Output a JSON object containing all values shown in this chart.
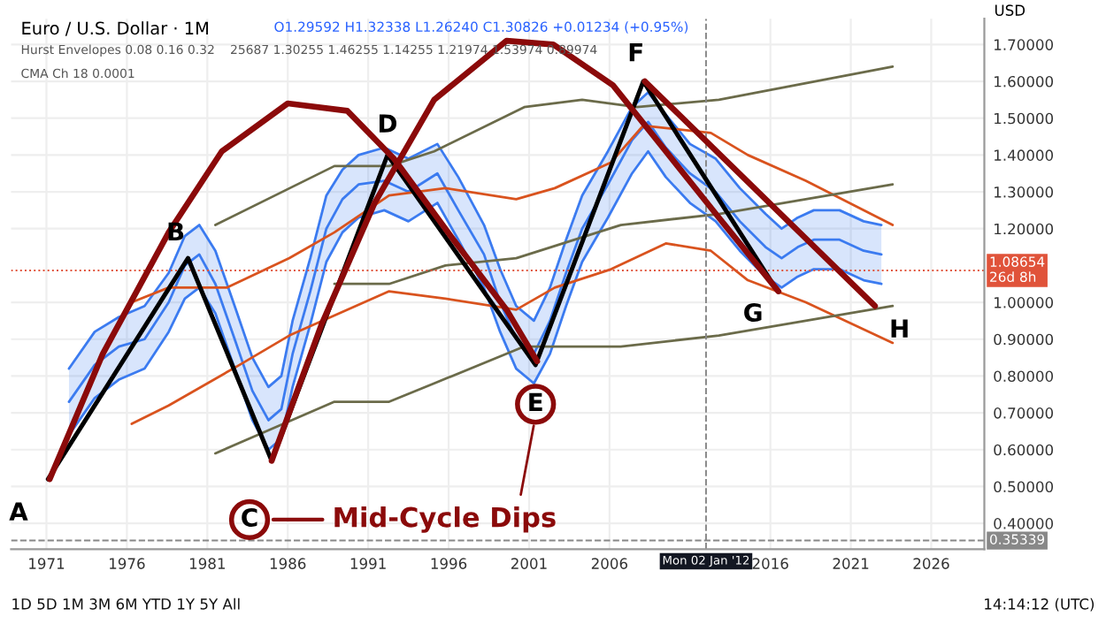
{
  "chart_data": {
    "type": "line",
    "title": "Euro / U.S. Dollar · 1M",
    "subtitle": "O1.29592 H1.32338 L1.26240 C1.30826 +0.01234 (+0.95%)",
    "ylabel": "USD",
    "xlim": [
      1968.8,
      2029.3
    ],
    "ylim": [
      0.33,
      1.77
    ],
    "xticks": [
      1971,
      1976,
      1981,
      1986,
      1991,
      1996,
      2001,
      2006,
      2016,
      2021,
      2026
    ],
    "yticks": [
      {
        "value": 0.4,
        "label": "0.40000"
      },
      {
        "value": 0.5,
        "label": "0.50000"
      },
      {
        "value": 0.6,
        "label": "0.60000"
      },
      {
        "value": 0.7,
        "label": "0.70000"
      },
      {
        "value": 0.8,
        "label": "0.80000"
      },
      {
        "value": 0.9,
        "label": "0.90000"
      },
      {
        "value": 1.0,
        "label": "1.00000"
      },
      {
        "value": 1.2,
        "label": "1.20000"
      },
      {
        "value": 1.3,
        "label": "1.30000"
      },
      {
        "value": 1.4,
        "label": "1.40000"
      },
      {
        "value": 1.5,
        "label": "1.50000"
      },
      {
        "value": 1.6,
        "label": "1.60000"
      },
      {
        "value": 1.7,
        "label": "1.70000"
      }
    ],
    "grid": true,
    "series": [
      {
        "color": "#3b7bf0",
        "x": [
          1972.4,
          1974.0,
          1975.5,
          1977.1,
          1978.6,
          1979.6,
          1980.5,
          1981.5,
          1982.7,
          1983.8,
          1984.8,
          1985.6,
          1986.3,
          1987.4,
          1988.4,
          1989.4,
          1990.4,
          1992.0,
          1993.5,
          1995.3,
          1996.6,
          1998.2,
          1999.2,
          2000.2,
          2001.3,
          2002.3,
          2003.3,
          2004.3,
          2005.9,
          2007.4,
          2008.4,
          2009.5,
          2011.0,
          2012.6,
          2014.1,
          2015.7,
          2016.7,
          2017.7,
          2018.7,
          2020.3,
          2021.8,
          2022.9
        ],
        "values": [
          0.64,
          0.74,
          0.79,
          0.82,
          0.92,
          1.01,
          1.04,
          0.97,
          0.82,
          0.68,
          0.6,
          0.63,
          0.77,
          0.94,
          1.11,
          1.19,
          1.23,
          1.25,
          1.22,
          1.27,
          1.17,
          1.04,
          0.92,
          0.82,
          0.78,
          0.86,
          0.99,
          1.11,
          1.23,
          1.35,
          1.41,
          1.34,
          1.27,
          1.22,
          1.14,
          1.07,
          1.04,
          1.07,
          1.09,
          1.09,
          1.06,
          1.05
        ]
      },
      {
        "color": "#3b7bf0",
        "x": [
          1972.4,
          1974.0,
          1975.5,
          1977.1,
          1978.6,
          1979.6,
          1980.5,
          1981.5,
          1982.7,
          1983.8,
          1984.8,
          1985.6,
          1986.3,
          1987.4,
          1988.4,
          1989.4,
          1990.4,
          1992.0,
          1993.5,
          1995.3,
          1996.6,
          1998.2,
          1999.2,
          2000.2,
          2001.3,
          2002.3,
          2003.3,
          2004.3,
          2005.9,
          2007.4,
          2008.4,
          2009.5,
          2011.0,
          2012.6,
          2014.1,
          2015.7,
          2016.7,
          2017.7,
          2018.7,
          2020.3,
          2021.8,
          2022.9
        ],
        "values": [
          0.82,
          0.92,
          0.96,
          0.99,
          1.08,
          1.18,
          1.21,
          1.14,
          0.99,
          0.85,
          0.77,
          0.8,
          0.95,
          1.12,
          1.29,
          1.36,
          1.4,
          1.42,
          1.39,
          1.43,
          1.34,
          1.21,
          1.09,
          0.99,
          0.95,
          1.04,
          1.17,
          1.29,
          1.41,
          1.53,
          1.57,
          1.51,
          1.43,
          1.39,
          1.31,
          1.24,
          1.2,
          1.23,
          1.25,
          1.25,
          1.22,
          1.21
        ]
      },
      {
        "color": "#3b7bf0",
        "x": [
          1972.4,
          1974.0,
          1975.5,
          1977.1,
          1978.6,
          1979.6,
          1980.5,
          1981.5,
          1982.7,
          1983.8,
          1984.8,
          1985.6,
          1986.3,
          1987.4,
          1988.4,
          1989.4,
          1990.4,
          1992.0,
          1993.5,
          1995.3,
          1996.6,
          1998.2,
          1999.2,
          2000.2,
          2001.3,
          2002.3,
          2003.3,
          2004.3,
          2005.9,
          2007.4,
          2008.4,
          2009.5,
          2011.0,
          2012.6,
          2014.1,
          2015.7,
          2016.7,
          2017.7,
          2018.7,
          2020.3,
          2021.8,
          2022.9
        ],
        "values": [
          0.73,
          0.83,
          0.88,
          0.9,
          1.0,
          1.1,
          1.13,
          1.05,
          0.9,
          0.76,
          0.68,
          0.71,
          0.86,
          1.03,
          1.2,
          1.28,
          1.32,
          1.33,
          1.3,
          1.35,
          1.25,
          1.13,
          1.0,
          0.9,
          0.86,
          0.95,
          1.08,
          1.2,
          1.32,
          1.44,
          1.49,
          1.42,
          1.35,
          1.3,
          1.22,
          1.15,
          1.12,
          1.15,
          1.17,
          1.17,
          1.14,
          1.13
        ],
        "lower": [
          0.64,
          0.74,
          0.79,
          0.82,
          0.92,
          1.01,
          1.04,
          0.97,
          0.82,
          0.68,
          0.6,
          0.63,
          0.77,
          0.94,
          1.11,
          1.19,
          1.23,
          1.25,
          1.22,
          1.27,
          1.17,
          1.04,
          0.92,
          0.82,
          0.78,
          0.86,
          0.99,
          1.11,
          1.23,
          1.35,
          1.41,
          1.34,
          1.27,
          1.22,
          1.14,
          1.07,
          1.04,
          1.07,
          1.09,
          1.09,
          1.06,
          1.05
        ],
        "upper": [
          0.82,
          0.92,
          0.96,
          0.99,
          1.08,
          1.18,
          1.21,
          1.14,
          0.99,
          0.85,
          0.77,
          0.8,
          0.95,
          1.12,
          1.29,
          1.36,
          1.4,
          1.42,
          1.39,
          1.43,
          1.34,
          1.21,
          1.09,
          0.99,
          0.95,
          1.04,
          1.17,
          1.29,
          1.41,
          1.53,
          1.57,
          1.51,
          1.43,
          1.39,
          1.31,
          1.24,
          1.2,
          1.23,
          1.25,
          1.25,
          1.22,
          1.21
        ]
      },
      {
        "color": "#d9531e",
        "x": [
          1976.3,
          1978.6,
          1982.2,
          1986.1,
          1988.9,
          1992.3,
          1995.8,
          2000.2,
          2002.6,
          2006.1,
          2008.1,
          2012.3,
          2014.6,
          2018.2,
          2023.6
        ],
        "values": [
          1.0,
          1.04,
          1.04,
          1.12,
          1.19,
          1.29,
          1.31,
          1.28,
          1.31,
          1.38,
          1.48,
          1.46,
          1.4,
          1.33,
          1.21
        ]
      },
      {
        "color": "#d9531e",
        "x": [
          1976.3,
          1978.6,
          1983.0,
          1986.1,
          1992.3,
          1995.8,
          2000.2,
          2002.6,
          2006.1,
          2009.5,
          2012.3,
          2014.6,
          2018.2,
          2023.6
        ],
        "values": [
          0.67,
          0.72,
          0.83,
          0.91,
          1.03,
          1.01,
          0.98,
          1.04,
          1.09,
          1.16,
          1.14,
          1.06,
          1.0,
          0.89
        ]
      },
      {
        "color": "#6b6b4a",
        "x": [
          1981.5,
          1988.9,
          1992.3,
          1995.1,
          2000.7,
          2004.3,
          2007.7,
          2012.8,
          2023.6
        ],
        "values": [
          1.21,
          1.37,
          1.37,
          1.41,
          1.53,
          1.55,
          1.53,
          1.55,
          1.64
        ]
      },
      {
        "color": "#6b6b4a",
        "x": [
          1988.9,
          1992.3,
          1995.8,
          2000.2,
          2006.7,
          2012.8,
          2023.6
        ],
        "values": [
          1.05,
          1.05,
          1.1,
          1.12,
          1.21,
          1.24,
          1.32
        ]
      },
      {
        "color": "#6b6b4a",
        "x": [
          1981.5,
          1988.9,
          1992.3,
          1995.1,
          2000.7,
          2006.7,
          2012.8,
          2023.6
        ],
        "values": [
          0.59,
          0.73,
          0.73,
          0.78,
          0.88,
          0.88,
          0.91,
          0.99
        ]
      },
      {
        "color": "#000000",
        "x": [
          1971.1,
          1979.8,
          1985.0,
          1992.2,
          2001.4,
          2008.1,
          2016.3
        ],
        "values": [
          0.52,
          1.12,
          0.57,
          1.4,
          0.83,
          1.6,
          1.04
        ]
      },
      {
        "color": "#8b0a0a",
        "x": [
          1971.2,
          1974.5,
          1978.6,
          1981.9,
          1986.0,
          1989.7,
          1992.6,
          1996.3,
          1999.6,
          2001.5
        ],
        "values": [
          0.52,
          0.86,
          1.19,
          1.41,
          1.54,
          1.52,
          1.39,
          1.17,
          0.98,
          0.84
        ]
      },
      {
        "color": "#8b0a0a",
        "x": [
          1985.0,
          1988.1,
          1991.4,
          1995.1,
          1999.6,
          2002.5,
          2006.2,
          2009.5,
          2012.8,
          2016.5
        ],
        "values": [
          0.57,
          0.94,
          1.27,
          1.55,
          1.71,
          1.7,
          1.59,
          1.41,
          1.23,
          1.03
        ]
      },
      {
        "color": "#8b0a0a",
        "x": [
          2008.2,
          2022.5
        ],
        "values": [
          1.6,
          0.99
        ]
      }
    ],
    "ref_lines": [
      {
        "axis": "y",
        "value": 1.08654,
        "label": "1.08654\n26d 8h",
        "color": "#e0533a",
        "line_style": "dotted"
      },
      {
        "axis": "y",
        "value": 0.35339,
        "label": "0.35339",
        "color": "#888888",
        "line_style": "dashed"
      },
      {
        "axis": "x",
        "value": 2012.0,
        "label": "Mon 02 Jan '12",
        "color": "#888888",
        "line_style": "dashed"
      }
    ],
    "annotations": [
      "Hurst Envelopes 0.08 0.16 0.32",
      "25687 1.30255 1.46255 1.14255 1.21974 1.53974 0.89974",
      "CMA Ch 18 0.0001",
      "1D 5D 1M 3M 6M YTD 1Y 5Y All",
      "14:14:12 (UTC)",
      {
        "text": "A",
        "x": 1971.1,
        "y": 0.52
      },
      {
        "text": "B",
        "x": 1979.8,
        "y": 1.12
      },
      {
        "text": "C",
        "x": 1985.0,
        "y": 0.57
      },
      {
        "text": "D",
        "x": 1992.2,
        "y": 1.4
      },
      {
        "text": "E",
        "x": 2001.4,
        "y": 0.83
      },
      {
        "text": "F",
        "x": 2008.1,
        "y": 1.6
      },
      {
        "text": "G",
        "x": 2016.3,
        "y": 1.04
      },
      {
        "text": "H",
        "x": 2022.5,
        "y": 0.99
      },
      "Mid-Cycle Dips"
    ]
  }
}
